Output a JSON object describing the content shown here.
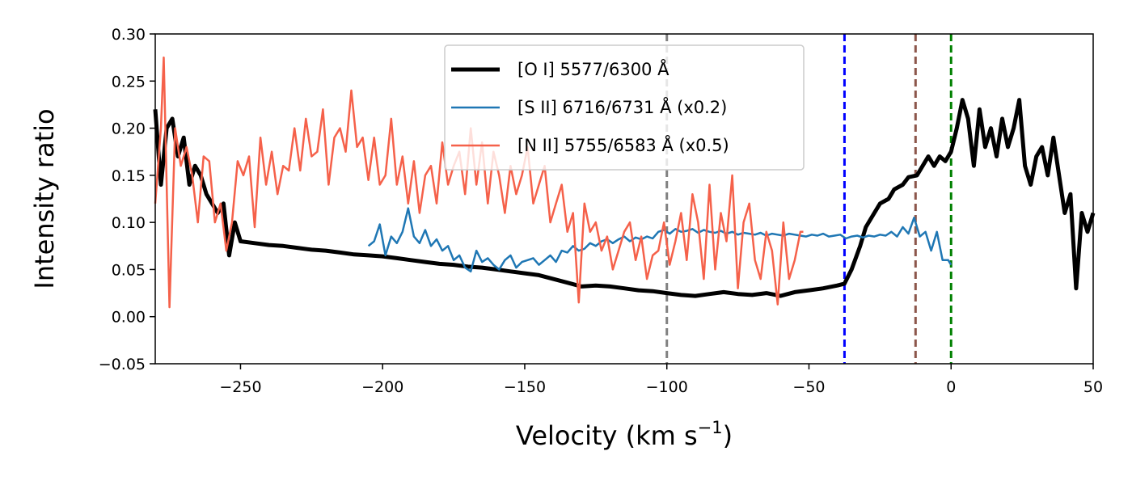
{
  "chart_data": {
    "type": "line",
    "title": "",
    "xlabel": "Velocity (km s",
    "xlabel_sup": "−1",
    "xlabel_close": ")",
    "ylabel": "Intensity ratio",
    "xlim": [
      -280,
      50
    ],
    "ylim": [
      -0.05,
      0.3
    ],
    "xticks": [
      -250,
      -200,
      -150,
      -100,
      -50,
      0,
      50
    ],
    "xtick_labels": [
      "−250",
      "−200",
      "−150",
      "−100",
      "−50",
      "0",
      "50"
    ],
    "yticks": [
      -0.05,
      0.0,
      0.05,
      0.1,
      0.15,
      0.2,
      0.25,
      0.3
    ],
    "ytick_labels": [
      "−0.05",
      "0.00",
      "0.05",
      "0.10",
      "0.15",
      "0.20",
      "0.25",
      "0.30"
    ],
    "grid": false,
    "legend_position": "top-center",
    "vlines": [
      {
        "x": -100,
        "color": "#808080"
      },
      {
        "x": -37.5,
        "color": "#0000ff"
      },
      {
        "x": -12.5,
        "color": "#8c564b"
      },
      {
        "x": 0,
        "color": "#008000"
      }
    ],
    "series": [
      {
        "name": "[O I] 5577/6300 Å",
        "color": "#000000",
        "width": 5,
        "x": [
          -280,
          -278,
          -276,
          -274,
          -272,
          -270,
          -268,
          -266,
          -264,
          -262,
          -260,
          -258,
          -256,
          -254,
          -252,
          -250,
          -245,
          -240,
          -235,
          -230,
          -225,
          -220,
          -215,
          -210,
          -205,
          -200,
          -195,
          -190,
          -185,
          -180,
          -175,
          -170,
          -165,
          -160,
          -155,
          -150,
          -145,
          -140,
          -135,
          -130,
          -125,
          -120,
          -115,
          -110,
          -105,
          -100,
          -95,
          -90,
          -85,
          -80,
          -75,
          -70,
          -65,
          -60,
          -55,
          -50,
          -45,
          -40,
          -37.5,
          -35,
          -32,
          -30,
          -27,
          -25,
          -22,
          -20,
          -17,
          -15,
          -12,
          -10,
          -8,
          -6,
          -4,
          -2,
          0,
          2,
          4,
          6,
          8,
          10,
          12,
          14,
          16,
          18,
          20,
          22,
          24,
          26,
          28,
          30,
          32,
          34,
          36,
          38,
          40,
          42,
          44,
          46,
          48,
          50
        ],
        "y": [
          0.22,
          0.14,
          0.2,
          0.21,
          0.17,
          0.19,
          0.14,
          0.16,
          0.15,
          0.13,
          0.12,
          0.11,
          0.12,
          0.065,
          0.1,
          0.08,
          0.078,
          0.076,
          0.075,
          0.073,
          0.071,
          0.07,
          0.068,
          0.066,
          0.065,
          0.064,
          0.062,
          0.06,
          0.058,
          0.056,
          0.055,
          0.053,
          0.052,
          0.05,
          0.048,
          0.046,
          0.044,
          0.04,
          0.036,
          0.032,
          0.033,
          0.032,
          0.03,
          0.028,
          0.027,
          0.025,
          0.023,
          0.022,
          0.024,
          0.026,
          0.024,
          0.023,
          0.025,
          0.022,
          0.026,
          0.028,
          0.03,
          0.033,
          0.035,
          0.05,
          0.075,
          0.095,
          0.11,
          0.12,
          0.125,
          0.135,
          0.14,
          0.148,
          0.15,
          0.16,
          0.17,
          0.16,
          0.17,
          0.165,
          0.175,
          0.2,
          0.23,
          0.21,
          0.16,
          0.22,
          0.18,
          0.2,
          0.17,
          0.21,
          0.18,
          0.2,
          0.23,
          0.16,
          0.14,
          0.17,
          0.18,
          0.15,
          0.19,
          0.15,
          0.11,
          0.13,
          0.03,
          0.11,
          0.09,
          0.11
        ]
      },
      {
        "name": "[S II] 6716/6731 Å (x0.2)",
        "color": "#1f77b4",
        "width": 2.5,
        "x": [
          -205,
          -203,
          -201,
          -199,
          -197,
          -195,
          -193,
          -191,
          -189,
          -187,
          -185,
          -183,
          -181,
          -179,
          -177,
          -175,
          -173,
          -171,
          -169,
          -167,
          -165,
          -163,
          -161,
          -159,
          -157,
          -155,
          -153,
          -151,
          -149,
          -147,
          -145,
          -143,
          -141,
          -139,
          -137,
          -135,
          -133,
          -131,
          -129,
          -127,
          -125,
          -123,
          -121,
          -119,
          -117,
          -115,
          -113,
          -111,
          -109,
          -107,
          -105,
          -103,
          -101,
          -99,
          -97,
          -95,
          -93,
          -91,
          -89,
          -87,
          -85,
          -83,
          -81,
          -79,
          -77,
          -75,
          -73,
          -71,
          -69,
          -67,
          -65,
          -63,
          -61,
          -59,
          -57,
          -55,
          -53,
          -51,
          -49,
          -47,
          -45,
          -43,
          -41,
          -39,
          -37,
          -35,
          -33,
          -31,
          -29,
          -27,
          -25,
          -23,
          -21,
          -19,
          -17,
          -15,
          -13,
          -11,
          -9,
          -7,
          -5,
          -3,
          -1,
          0
        ],
        "y": [
          0.075,
          0.08,
          0.098,
          0.065,
          0.085,
          0.078,
          0.09,
          0.115,
          0.085,
          0.078,
          0.092,
          0.075,
          0.082,
          0.07,
          0.075,
          0.06,
          0.065,
          0.052,
          0.048,
          0.07,
          0.058,
          0.062,
          0.055,
          0.05,
          0.06,
          0.065,
          0.052,
          0.058,
          0.06,
          0.062,
          0.055,
          0.06,
          0.065,
          0.058,
          0.07,
          0.068,
          0.075,
          0.07,
          0.072,
          0.078,
          0.075,
          0.08,
          0.082,
          0.078,
          0.082,
          0.085,
          0.08,
          0.084,
          0.082,
          0.085,
          0.083,
          0.09,
          0.092,
          0.088,
          0.093,
          0.09,
          0.091,
          0.093,
          0.089,
          0.092,
          0.09,
          0.089,
          0.091,
          0.088,
          0.09,
          0.087,
          0.089,
          0.088,
          0.087,
          0.089,
          0.086,
          0.088,
          0.087,
          0.086,
          0.088,
          0.087,
          0.086,
          0.085,
          0.087,
          0.086,
          0.088,
          0.085,
          0.086,
          0.087,
          0.083,
          0.085,
          0.086,
          0.084,
          0.086,
          0.085,
          0.087,
          0.086,
          0.09,
          0.085,
          0.095,
          0.088,
          0.105,
          0.085,
          0.09,
          0.07,
          0.09,
          0.06,
          0.06,
          0.055
        ]
      },
      {
        "name": "[N II] 5755/6583 Å (x0.5)",
        "color": "#f5614a",
        "width": 2.5,
        "x": [
          -280,
          -278,
          -277,
          -275,
          -273,
          -271,
          -269,
          -267,
          -265,
          -263,
          -261,
          -259,
          -257,
          -255,
          -253,
          -251,
          -249,
          -247,
          -245,
          -243,
          -241,
          -239,
          -237,
          -235,
          -233,
          -231,
          -229,
          -227,
          -225,
          -223,
          -221,
          -219,
          -217,
          -215,
          -213,
          -211,
          -209,
          -207,
          -205,
          -203,
          -201,
          -199,
          -197,
          -195,
          -193,
          -191,
          -189,
          -187,
          -185,
          -183,
          -181,
          -179,
          -177,
          -175,
          -173,
          -171,
          -169,
          -167,
          -165,
          -163,
          -161,
          -159,
          -157,
          -155,
          -153,
          -151,
          -149,
          -147,
          -145,
          -143,
          -141,
          -139,
          -137,
          -135,
          -133,
          -131,
          -129,
          -127,
          -125,
          -123,
          -121,
          -119,
          -117,
          -115,
          -113,
          -111,
          -109,
          -107,
          -105,
          -103,
          -101,
          -99,
          -97,
          -95,
          -93,
          -91,
          -89,
          -87,
          -85,
          -83,
          -81,
          -79,
          -77,
          -75,
          -73,
          -71,
          -69,
          -67,
          -65,
          -63,
          -61,
          -59,
          -57,
          -55,
          -53,
          -52
        ],
        "y": [
          0.12,
          0.2,
          0.275,
          0.01,
          0.2,
          0.16,
          0.18,
          0.15,
          0.1,
          0.17,
          0.165,
          0.1,
          0.12,
          0.07,
          0.1,
          0.165,
          0.15,
          0.17,
          0.095,
          0.19,
          0.14,
          0.175,
          0.13,
          0.16,
          0.155,
          0.2,
          0.155,
          0.21,
          0.17,
          0.175,
          0.22,
          0.14,
          0.19,
          0.2,
          0.175,
          0.24,
          0.18,
          0.19,
          0.145,
          0.19,
          0.14,
          0.15,
          0.21,
          0.14,
          0.17,
          0.12,
          0.165,
          0.11,
          0.15,
          0.16,
          0.12,
          0.185,
          0.14,
          0.16,
          0.175,
          0.13,
          0.2,
          0.14,
          0.185,
          0.12,
          0.175,
          0.15,
          0.11,
          0.16,
          0.13,
          0.15,
          0.18,
          0.12,
          0.14,
          0.16,
          0.1,
          0.12,
          0.14,
          0.09,
          0.11,
          0.015,
          0.12,
          0.09,
          0.1,
          0.07,
          0.085,
          0.05,
          0.07,
          0.09,
          0.1,
          0.06,
          0.085,
          0.04,
          0.065,
          0.07,
          0.1,
          0.055,
          0.08,
          0.11,
          0.06,
          0.13,
          0.1,
          0.04,
          0.14,
          0.05,
          0.11,
          0.08,
          0.15,
          0.03,
          0.1,
          0.12,
          0.06,
          0.04,
          0.09,
          0.07,
          0.013,
          0.1,
          0.04,
          0.06,
          0.09,
          0.09
        ]
      }
    ]
  }
}
